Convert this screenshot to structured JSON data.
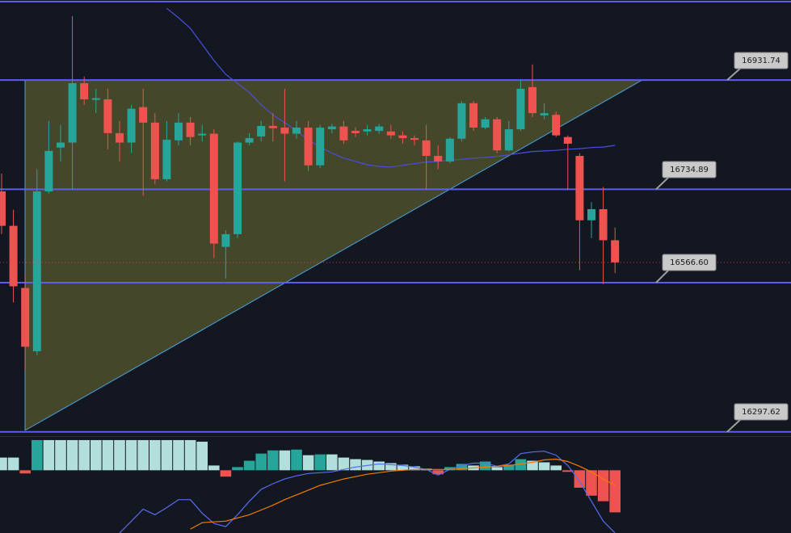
{
  "chart_data": {
    "type": "candlestick",
    "ylim": [
      16290,
      17076
    ],
    "up_color": "#26a69a",
    "down_color": "#ef5350",
    "level_color": "#5b5cf0",
    "ma_color": "#4b4fd8",
    "open": [
      16731,
      16669,
      16557,
      16443,
      16731,
      16810,
      16819,
      16926,
      16896,
      16897,
      16836,
      16819,
      16883,
      16855,
      16753,
      16823,
      16855,
      16832,
      16835,
      16631,
      16654,
      16819,
      16830,
      16849,
      16846,
      16835,
      16846,
      16778,
      16843,
      16848,
      16840,
      16839,
      16840,
      16839,
      16832,
      16827,
      16823,
      16795,
      16785,
      16826,
      16890,
      16846,
      16861,
      16805,
      16843,
      16919,
      16868,
      16869,
      16829,
      16795,
      16679,
      16699,
      16643
    ],
    "high": [
      16763,
      16698,
      16581,
      16771,
      16858,
      16851,
      17047,
      16938,
      16916,
      16916,
      16858,
      16887,
      16916,
      16872,
      16858,
      16872,
      16865,
      16851,
      16843,
      16661,
      16821,
      16836,
      16858,
      16872,
      16916,
      16858,
      16858,
      16851,
      16853,
      16858,
      16846,
      16851,
      16853,
      16851,
      16839,
      16832,
      16851,
      16814,
      16829,
      16894,
      16894,
      16865,
      16865,
      16858,
      16933,
      16960,
      16890,
      16875,
      16832,
      16800,
      16712,
      16739,
      16666
    ],
    "low": [
      16654,
      16531,
      16407,
      16436,
      16727,
      16785,
      16734,
      16887,
      16872,
      16807,
      16785,
      16800,
      16723,
      16744,
      16749,
      16814,
      16814,
      16821,
      16611,
      16574,
      16647,
      16814,
      16821,
      16821,
      16749,
      16826,
      16768,
      16773,
      16836,
      16817,
      16829,
      16832,
      16835,
      16826,
      16817,
      16814,
      16734,
      16771,
      16782,
      16821,
      16840,
      16843,
      16800,
      16803,
      16840,
      16865,
      16861,
      16829,
      16734,
      16589,
      16647,
      16564,
      16584
    ],
    "close": [
      16669,
      16560,
      16451,
      16731,
      16804,
      16819,
      16926,
      16897,
      16899,
      16836,
      16819,
      16880,
      16855,
      16753,
      16824,
      16855,
      16829,
      16835,
      16637,
      16654,
      16819,
      16827,
      16849,
      16845,
      16835,
      16846,
      16778,
      16846,
      16848,
      16823,
      16836,
      16843,
      16848,
      16832,
      16827,
      16824,
      16795,
      16785,
      16826,
      16890,
      16846,
      16861,
      16805,
      16843,
      16916,
      16872,
      16872,
      16832,
      16817,
      16679,
      16699,
      16643,
      16603
    ],
    "ma": [
      null,
      null,
      null,
      null,
      null,
      null,
      null,
      null,
      null,
      null,
      null,
      null,
      null,
      null,
      17061,
      17044,
      17025,
      16996,
      16967,
      16942,
      16926,
      16909,
      16887,
      16869,
      16855,
      16840,
      16824,
      16811,
      16800,
      16791,
      16785,
      16779,
      16776,
      16775,
      16778,
      16781,
      16784,
      16785,
      16787,
      16789,
      16791,
      16792,
      16794,
      16797,
      16800,
      16803,
      16804,
      16805,
      16807,
      16808,
      16810,
      16811,
      16814
    ],
    "levels": [
      17073,
      16931.74,
      16734.89,
      16566.6,
      16297.62
    ],
    "level_labels": [
      null,
      "16931.74",
      "16734.89",
      "16566.60",
      "16297.62"
    ],
    "macd": {
      "ylim": [
        -79,
        41
      ],
      "histogram": [
        16,
        16,
        -4,
        38,
        38,
        38,
        38,
        38,
        38,
        38,
        38,
        38,
        38,
        38,
        38,
        38,
        38,
        36,
        6,
        -8,
        4,
        12,
        21,
        25,
        25,
        26,
        19,
        20,
        20,
        16,
        14,
        13,
        11,
        9,
        7,
        5,
        2,
        -5,
        4,
        8,
        6,
        11,
        4,
        7,
        14,
        12,
        10,
        6,
        -2,
        -22,
        -32,
        -39,
        -53
      ],
      "macd_line": [
        null,
        null,
        null,
        null,
        null,
        null,
        null,
        null,
        null,
        null,
        -79,
        -64,
        -49,
        -56,
        -47,
        -37,
        -37,
        -54,
        -67,
        -71,
        -56,
        -39,
        -24,
        -17,
        -11,
        -7,
        -4,
        -3,
        -2,
        1,
        4,
        6,
        8,
        7,
        6,
        4,
        1,
        -6,
        1,
        6,
        9,
        9,
        5,
        8,
        21,
        23,
        24,
        19,
        6,
        -14,
        -39,
        -64,
        -79
      ],
      "signal_line": [
        null,
        null,
        null,
        null,
        null,
        null,
        null,
        null,
        null,
        null,
        null,
        null,
        null,
        null,
        null,
        null,
        -74,
        -66,
        -65,
        -64,
        -60,
        -56,
        -50,
        -44,
        -37,
        -31,
        -25,
        -19,
        -15,
        -11,
        -8,
        -5,
        -3,
        -1,
        0,
        1,
        1,
        1,
        1,
        2,
        3,
        4,
        5,
        6,
        8,
        10,
        13,
        14,
        11,
        5,
        -2,
        -11,
        -19
      ],
      "macd_color": "#5a6cf0",
      "signal_color": "#f57c00",
      "hist_up": "#26a69a",
      "hist_up_fading": "#b2dfdb",
      "hist_down": "#ef5350",
      "hist_down_fading": "#ffcdd2"
    }
  }
}
